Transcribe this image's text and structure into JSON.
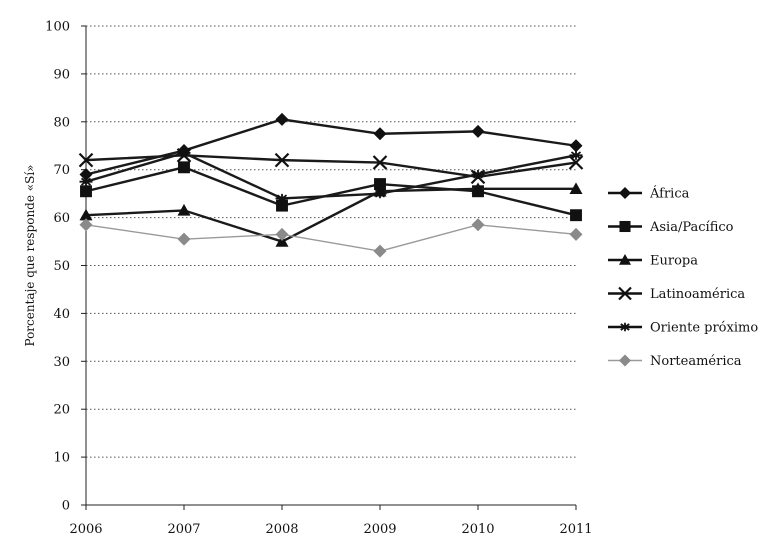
{
  "chart_data": {
    "type": "line",
    "x": [
      "2006",
      "2007",
      "2008",
      "2009",
      "2010",
      "2011"
    ],
    "ylabel": "Porcentaje que responde «Sí»",
    "ylim": [
      0,
      100
    ],
    "yticks": [
      "0",
      "10",
      "20",
      "30",
      "40",
      "50",
      "60",
      "70",
      "80",
      "90",
      "100"
    ],
    "grid": "horizontal dotted",
    "legend_position": "right",
    "series": [
      {
        "name": "África",
        "values": [
          69,
          74,
          80.5,
          77.5,
          78,
          75
        ],
        "marker": "diamond",
        "color": "#1a1a1a"
      },
      {
        "name": "Asia/Pacífico",
        "values": [
          65.5,
          70.5,
          62.5,
          67,
          65.5,
          60.5
        ],
        "marker": "square",
        "color": "#1a1a1a"
      },
      {
        "name": "Europa",
        "values": [
          60.5,
          61.5,
          55,
          65.5,
          66,
          66
        ],
        "marker": "triangle",
        "color": "#1a1a1a"
      },
      {
        "name": "Latinoamérica",
        "values": [
          72,
          73,
          72,
          71.5,
          68.5,
          71.5
        ],
        "marker": "x",
        "color": "#1a1a1a"
      },
      {
        "name": "Oriente próximo",
        "values": [
          67.5,
          73.5,
          64,
          65,
          69,
          73
        ],
        "marker": "star",
        "color": "#1a1a1a"
      },
      {
        "name": "Norteamérica",
        "values": [
          58.5,
          55.5,
          56.5,
          53,
          58.5,
          56.5
        ],
        "marker": "circle",
        "color": "#888888"
      }
    ]
  }
}
